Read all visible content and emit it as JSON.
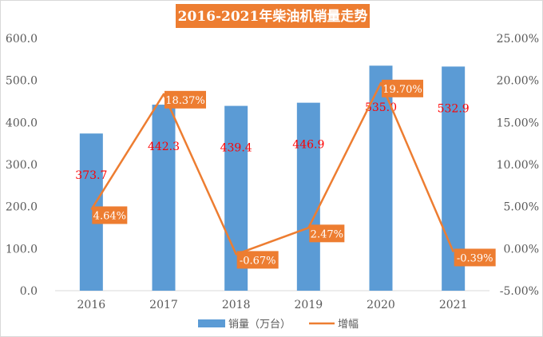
{
  "chart_data": {
    "type": "bar+line",
    "title": "2016-2021年柴油机销量走势",
    "categories": [
      "2016",
      "2017",
      "2018",
      "2019",
      "2020",
      "2021"
    ],
    "series": [
      {
        "name": "销量（万台）",
        "type": "bar",
        "axis": "left",
        "values": [
          373.7,
          442.3,
          439.4,
          446.9,
          535.0,
          532.9
        ],
        "labels": [
          "373.7",
          "442.3",
          "439.4",
          "446.9",
          "535.0",
          "532.9"
        ]
      },
      {
        "name": "增幅",
        "type": "line",
        "axis": "right",
        "values": [
          4.64,
          18.37,
          -0.67,
          2.47,
          19.7,
          -0.39
        ],
        "labels": [
          "4.64%",
          "18.37%",
          "-0.67%",
          "2.47%",
          "19.70%",
          "-0.39%"
        ]
      }
    ],
    "y_left": {
      "min": 0,
      "max": 600,
      "step": 100,
      "ticks": [
        "0.0",
        "100.0",
        "200.0",
        "300.0",
        "400.0",
        "500.0",
        "600.0"
      ]
    },
    "y_right": {
      "min": -5,
      "max": 25,
      "step": 5,
      "ticks": [
        "-5.00%",
        "0.00%",
        "5.00%",
        "10.00%",
        "15.00%",
        "20.00%",
        "25.00%"
      ]
    },
    "legend_position": "bottom",
    "gridlines": false,
    "colors": {
      "bar": "#5b9bd5",
      "line": "#ed7d31",
      "title_bg": "#ed7d31",
      "value_label": "#ff0000",
      "growth_label_bg": "#ed7d31"
    }
  }
}
